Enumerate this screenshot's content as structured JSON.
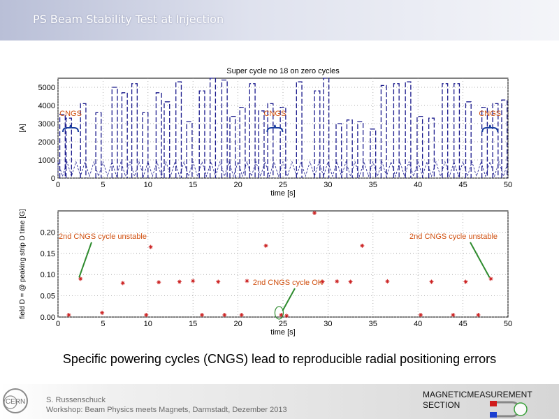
{
  "slide": {
    "title": "PS Beam Stability Test at Injection",
    "caption": "Specific powering cycles (CNGS) lead to reproducible radial positioning errors",
    "author_name": "S. Russenschuck",
    "author_event": "Workshop: Beam Physics meets Magnets, Darmstadt, Dezember 2013",
    "section_line1": "MAGNETICMEASUREMENT",
    "section_line2": "SECTION",
    "logo_text": "CERN"
  },
  "colors": {
    "title_bar": "#c3c8dc",
    "current_trace": "#1a1a8c",
    "scatter_marker": "#cc2222",
    "annotation": "#d05010",
    "ok_annotation": "#2e8b2e"
  },
  "chart_data": [
    {
      "type": "line",
      "title": "Super cycle no 18 on zero cycles",
      "xlabel": "time [s]",
      "ylabel": "[A]",
      "xlim": [
        0,
        50
      ],
      "ylim": [
        0,
        5500
      ],
      "xticks": [
        0,
        5,
        10,
        15,
        20,
        25,
        30,
        35,
        40,
        45,
        50
      ],
      "yticks": [
        0,
        1000,
        2000,
        3000,
        4000,
        5000
      ],
      "grid": true,
      "series": [
        {
          "pulses": [
            [
              0.5,
              3500
            ],
            [
              1.2,
              3300
            ],
            [
              2.8,
              4100
            ],
            [
              4.5,
              3600
            ],
            [
              6.3,
              5000
            ],
            [
              7.4,
              4700
            ],
            [
              8.5,
              5200
            ],
            [
              9.7,
              3600
            ],
            [
              11.2,
              4700
            ],
            [
              12.1,
              4200
            ],
            [
              13.4,
              5300
            ],
            [
              14.6,
              3100
            ],
            [
              16.0,
              4800
            ],
            [
              17.2,
              5500
            ],
            [
              18.5,
              5400
            ],
            [
              19.4,
              3400
            ],
            [
              20.5,
              3900
            ],
            [
              21.6,
              5200
            ],
            [
              22.6,
              3700
            ],
            [
              23.6,
              4100
            ],
            [
              25.0,
              3900
            ],
            [
              26.8,
              5300
            ],
            [
              28.8,
              4800
            ],
            [
              29.8,
              5500
            ],
            [
              31.2,
              3000
            ],
            [
              32.4,
              3200
            ],
            [
              33.6,
              3100
            ],
            [
              35.0,
              2700
            ],
            [
              36.2,
              5100
            ],
            [
              37.6,
              5200
            ],
            [
              38.9,
              5300
            ],
            [
              40.2,
              3400
            ],
            [
              41.5,
              3300
            ],
            [
              43.0,
              5200
            ],
            [
              44.3,
              5200
            ],
            [
              45.6,
              4200
            ],
            [
              47.4,
              3900
            ],
            [
              48.6,
              4100
            ],
            [
              49.6,
              4300
            ]
          ]
        }
      ],
      "annotations": [
        {
          "text": "CNGS",
          "x": 1.4
        },
        {
          "text": "CNGS",
          "x": 24.1
        },
        {
          "text": "CNGS",
          "x": 48.0
        }
      ]
    },
    {
      "type": "scatter",
      "title": "",
      "xlabel": "time [s]",
      "ylabel": "field D = @ peaking strip D time [G]",
      "xlim": [
        0,
        50
      ],
      "ylim": [
        0,
        0.25
      ],
      "xticks": [
        0,
        5,
        10,
        15,
        20,
        25,
        30,
        35,
        40,
        45,
        50
      ],
      "yticks": [
        0,
        0.05,
        0.1,
        0.15,
        0.2
      ],
      "grid": true,
      "series": [
        {
          "x": [
            1.2,
            2.5,
            4.9,
            7.2,
            9.8,
            10.3,
            11.2,
            13.5,
            15.0,
            16.0,
            17.8,
            18.5,
            20.4,
            21.0,
            23.1,
            24.8,
            25.4,
            28.5,
            29.4,
            31.0,
            32.5,
            33.8,
            36.6,
            40.3,
            41.5,
            43.9,
            45.3,
            46.7,
            48.1
          ],
          "y": [
            0.005,
            0.09,
            0.01,
            0.08,
            0.005,
            0.165,
            0.082,
            0.083,
            0.085,
            0.005,
            0.083,
            0.005,
            0.005,
            0.085,
            0.168,
            0.005,
            0.003,
            0.245,
            0.083,
            0.084,
            0.083,
            0.168,
            0.084,
            0.005,
            0.083,
            0.005,
            0.083,
            0.005,
            0.09
          ]
        }
      ],
      "annotations": [
        {
          "text": "2nd CNGS cycle unstable",
          "x": 2.5,
          "y": 0.09
        },
        {
          "text": "2nd CNGS cycle unstable",
          "x": 48.1,
          "y": 0.09
        },
        {
          "text": "2nd CNGS cycle OK",
          "x": 24.8,
          "y": 0.005
        }
      ]
    }
  ]
}
